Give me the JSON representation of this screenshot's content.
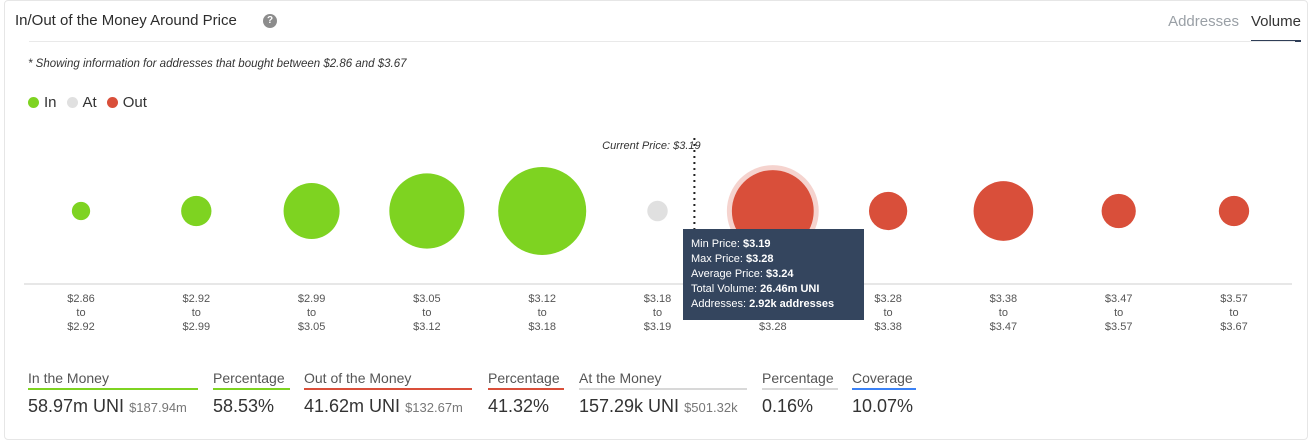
{
  "header": {
    "title": "In/Out of the Money Around Price",
    "help_glyph": "?",
    "tabs": [
      {
        "label": "Addresses",
        "active": false
      },
      {
        "label": "Volume",
        "active": true
      }
    ]
  },
  "note": "* Showing information for addresses that bought between $2.86 and $3.67",
  "legend": [
    {
      "label": "In",
      "color": "#7ed321"
    },
    {
      "label": "At",
      "color": "#e0e0e0"
    },
    {
      "label": "Out",
      "color": "#d94f3a"
    }
  ],
  "chart_data": {
    "type": "scatter",
    "current_price_label": "Current Price: $3.19",
    "current_price": 3.19,
    "bubbles": [
      {
        "range": [
          "$2.86",
          "to",
          "$2.92"
        ],
        "status": "in",
        "size": 0.8
      },
      {
        "range": [
          "$2.92",
          "to",
          "$2.99"
        ],
        "status": "in",
        "size": 2.2
      },
      {
        "range": [
          "$2.99",
          "to",
          "$3.05"
        ],
        "status": "in",
        "size": 7.5
      },
      {
        "range": [
          "$3.05",
          "to",
          "$3.12"
        ],
        "status": "in",
        "size": 13.5
      },
      {
        "range": [
          "$3.12",
          "to",
          "$3.18"
        ],
        "status": "in",
        "size": 18.5
      },
      {
        "range": [
          "$3.18",
          "to",
          "$3.19"
        ],
        "status": "at",
        "size": 1.0
      },
      {
        "range": [
          "$3.19",
          "to",
          "$3.28"
        ],
        "status": "out",
        "size": 16.0,
        "highlighted": true
      },
      {
        "range": [
          "$3.28",
          "to",
          "$3.38"
        ],
        "status": "out",
        "size": 3.5
      },
      {
        "range": [
          "$3.38",
          "to",
          "$3.47"
        ],
        "status": "out",
        "size": 8.5
      },
      {
        "range": [
          "$3.47",
          "to",
          "$3.57"
        ],
        "status": "out",
        "size": 2.8
      },
      {
        "range": [
          "$3.57",
          "to",
          "$3.67"
        ],
        "status": "out",
        "size": 2.2
      }
    ],
    "colors": {
      "in": "#7ed321",
      "at": "#e0e0e0",
      "out": "#d94f3a"
    }
  },
  "tooltip": {
    "rows": [
      {
        "label": "Min Price: ",
        "value": "$3.19"
      },
      {
        "label": "Max Price: ",
        "value": "$3.28"
      },
      {
        "label": "Average Price: ",
        "value": "$3.24"
      },
      {
        "label": "Total Volume: ",
        "value": "26.46m UNI"
      },
      {
        "label": "Addresses: ",
        "value": "2.92k addresses"
      }
    ]
  },
  "stats": [
    {
      "label": "In the Money",
      "value": "58.97m UNI",
      "sub": "$187.94m",
      "color": "#7ed321"
    },
    {
      "label": "Percentage",
      "value": "58.53%",
      "sub": "",
      "color": "#7ed321"
    },
    {
      "label": "Out of the Money",
      "value": "41.62m UNI",
      "sub": "$132.67m",
      "color": "#d94f3a"
    },
    {
      "label": "Percentage",
      "value": "41.32%",
      "sub": "",
      "color": "#d94f3a"
    },
    {
      "label": "At the Money",
      "value": "157.29k UNI",
      "sub": "$501.32k",
      "color": "#d8d8d8"
    },
    {
      "label": "Percentage",
      "value": "0.16%",
      "sub": "",
      "color": "#d8d8d8"
    },
    {
      "label": "Coverage",
      "value": "10.07%",
      "sub": "",
      "color": "#3b82f6"
    }
  ]
}
